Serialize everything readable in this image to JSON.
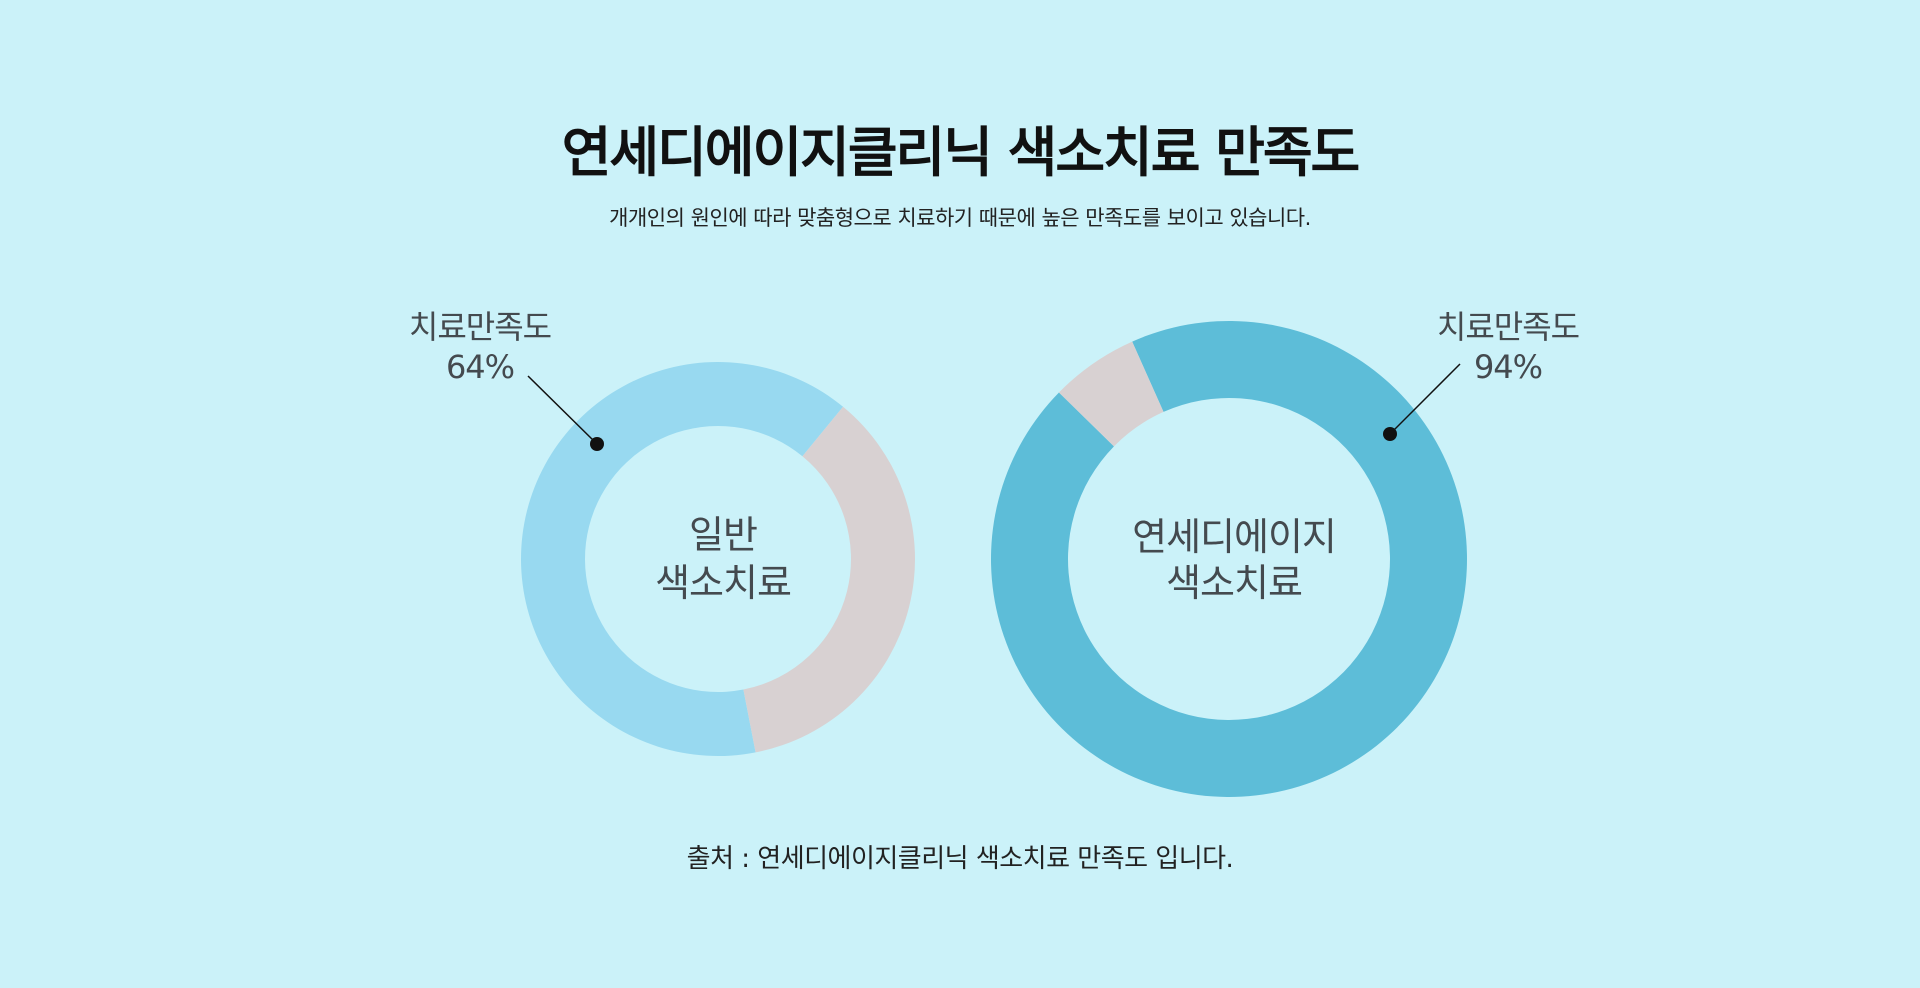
{
  "page": {
    "background": "#cbf2f9",
    "title": "연세디에이지클리닉 색소치료 만족도",
    "subtitle": "개개인의 원인에 따라 맞춤형으로 치료하기 때문에 높은 만족도를 보이고 있습니다.",
    "source": "출처 : 연세디에이지클리닉 색소치료 만족도 입니다."
  },
  "chart_data": [
    {
      "type": "pie",
      "center_label": [
        "일반",
        "색소치료"
      ],
      "callout_label": "치료만족도",
      "callout_value": "64%",
      "slices": [
        {
          "label": "치료만족도",
          "value": 64,
          "color": "#98d9f0"
        },
        {
          "label": "",
          "value": 36,
          "color": "#d8d1d2"
        }
      ]
    },
    {
      "type": "pie",
      "center_label": [
        "연세디에이지",
        "색소치료"
      ],
      "callout_label": "치료만족도",
      "callout_value": "94%",
      "slices": [
        {
          "label": "치료만족도",
          "value": 94,
          "color": "#5dbdd8"
        },
        {
          "label": "",
          "value": 6,
          "color": "#d8d1d2"
        }
      ]
    }
  ]
}
